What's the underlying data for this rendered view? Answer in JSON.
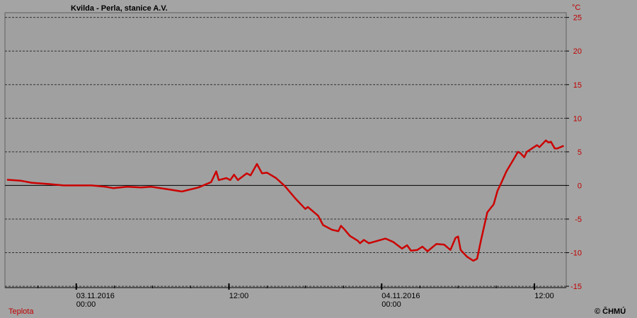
{
  "chart_data": {
    "type": "line",
    "title": "Kvilda - Perla, stanice A.V.",
    "y_unit": "°C",
    "legend": "Teplota",
    "credit": "© ČHMÚ",
    "xlim": [
      -5.6,
      38.5
    ],
    "xticks": [
      {
        "value": 0,
        "label": [
          "03.11.2016",
          "00:00"
        ]
      },
      {
        "value": 12,
        "label": [
          "12:00"
        ]
      },
      {
        "value": 24,
        "label": [
          "04.11.2016",
          "00:00"
        ]
      },
      {
        "value": 36,
        "label": [
          "12:00"
        ]
      }
    ],
    "xminor": [
      -3,
      3,
      6,
      9,
      15,
      18,
      21,
      27,
      30,
      33
    ],
    "ylim": [
      -15.2,
      25.7
    ],
    "yticks": [
      -15,
      -10,
      -5,
      0,
      5,
      10,
      15,
      20,
      25
    ],
    "grid": true,
    "series": [
      {
        "name": "Teplota",
        "color": "#cc0000",
        "x": [
          -5.44,
          -4.33,
          -3.5,
          -2.1,
          -1,
          1.2,
          2.3,
          2.9,
          4,
          5.1,
          5.9,
          7.3,
          8.3,
          9.6,
          10.6,
          11,
          11.2,
          11.8,
          12.1,
          12.4,
          12.7,
          13.4,
          13.7,
          14.2,
          14.6,
          15,
          15.7,
          16.4,
          17.2,
          18,
          18.2,
          19,
          19.4,
          20.1,
          20.6,
          20.8,
          21.1,
          21.5,
          22.1,
          22.3,
          22.6,
          23,
          24.3,
          24.9,
          25.6,
          26,
          26.3,
          26.8,
          27.2,
          27.6,
          28.3,
          28.9,
          29.4,
          29.8,
          30,
          30.2,
          30.7,
          31.2,
          31.5,
          31.8,
          32.3,
          32.8,
          33.1,
          33.4,
          33.8,
          34.4,
          34.7,
          34.9,
          35.2,
          35.4,
          36.2,
          36.4,
          36.9,
          37.1,
          37.3,
          37.6,
          37.8,
          38.3
        ],
        "values": [
          0.84,
          0.7,
          0.4,
          0.2,
          0,
          0,
          -0.2,
          -0.4,
          -0.2,
          -0.3,
          -0.2,
          -0.6,
          -0.9,
          -0.3,
          0.5,
          2.1,
          0.8,
          1.1,
          0.8,
          1.6,
          0.8,
          1.8,
          1.5,
          3.2,
          1.8,
          1.9,
          1.1,
          -0.1,
          -1.9,
          -3.5,
          -3.2,
          -4.5,
          -5.9,
          -6.6,
          -6.8,
          -6.0,
          -6.6,
          -7.5,
          -8.2,
          -8.6,
          -8.1,
          -8.6,
          -7.9,
          -8.4,
          -9.4,
          -8.9,
          -9.7,
          -9.6,
          -9.1,
          -9.8,
          -8.7,
          -8.8,
          -9.6,
          -7.8,
          -7.6,
          -9.6,
          -10.6,
          -11.2,
          -10.9,
          -8.2,
          -4.0,
          -2.8,
          -0.8,
          0.4,
          2.1,
          4.0,
          5.0,
          4.8,
          4.2,
          5.0,
          6.0,
          5.7,
          6.7,
          6.4,
          6.5,
          5.5,
          5.5,
          5.9
        ]
      }
    ]
  }
}
